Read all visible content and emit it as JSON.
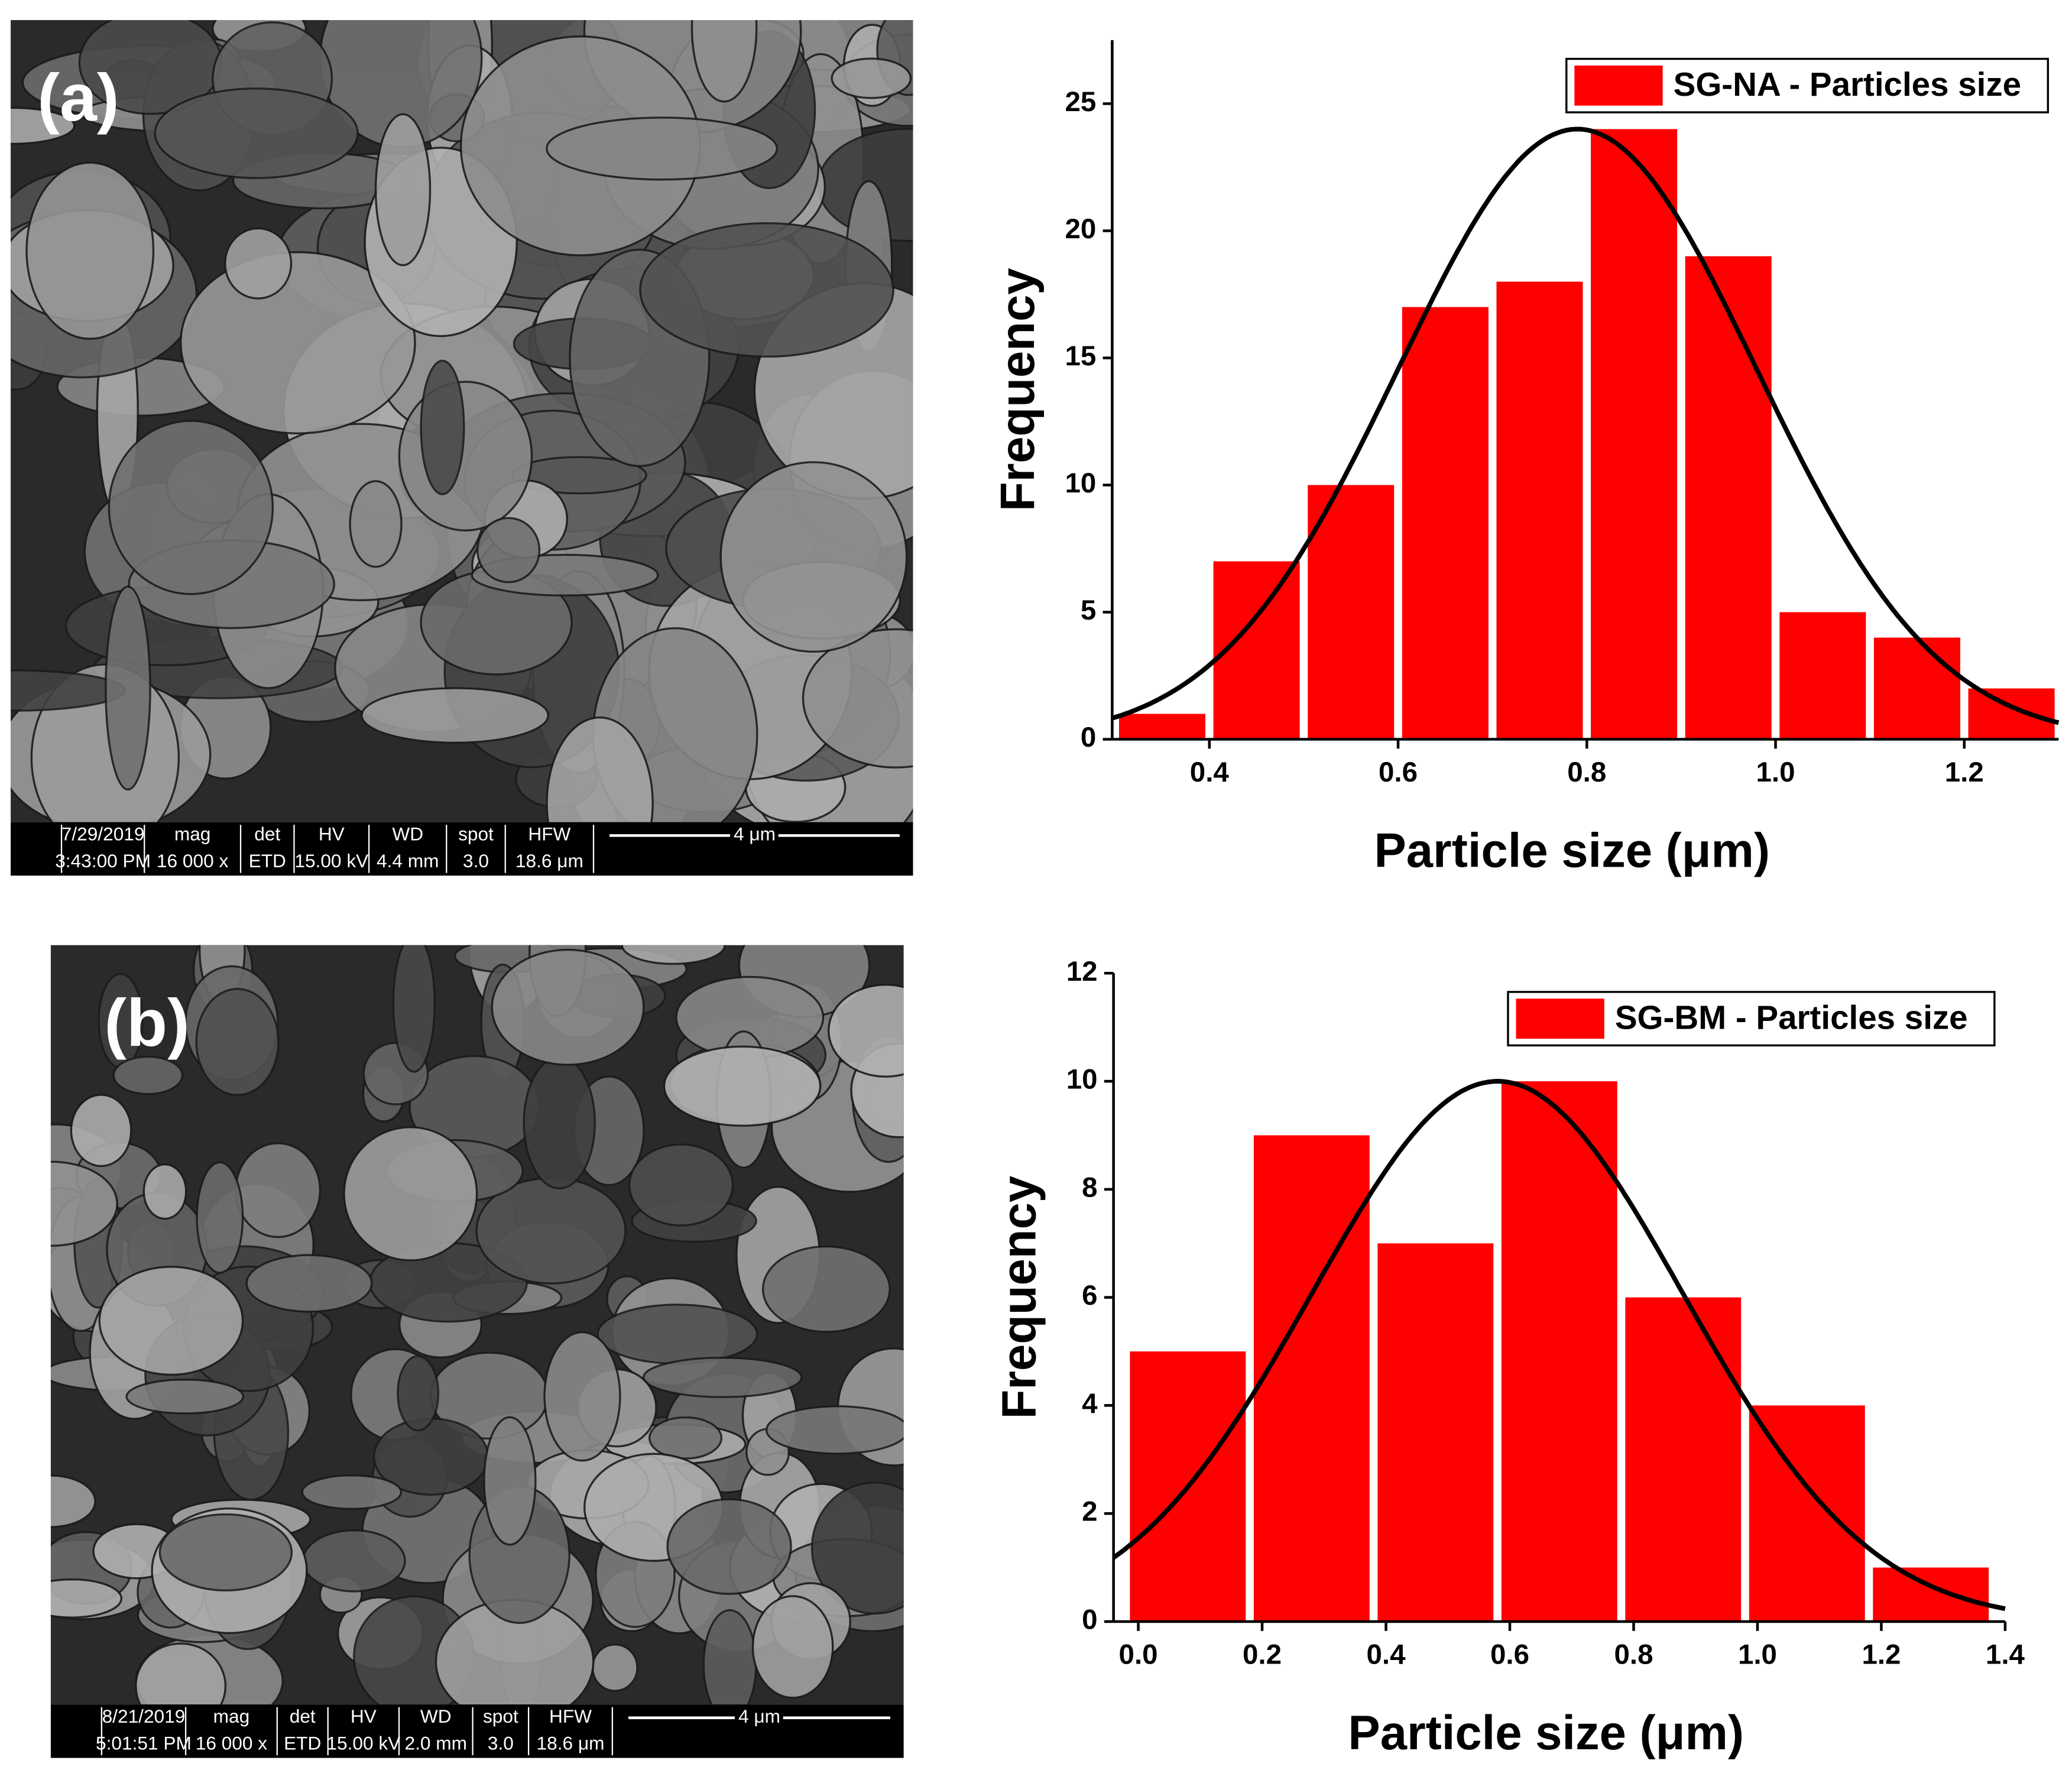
{
  "images": [
    {
      "label": "(a)",
      "info": [
        [
          "7/29/2019",
          "3:43:00 PM"
        ],
        [
          "mag",
          "16 000 x"
        ],
        [
          "det",
          "ETD"
        ],
        [
          "HV",
          "15.00 kV"
        ],
        [
          "WD",
          "4.4 mm"
        ],
        [
          "spot",
          "3.0"
        ],
        [
          "HFW",
          "18.6 μm"
        ]
      ],
      "scale": "4 μm"
    },
    {
      "label": "(b)",
      "info": [
        [
          "8/21/2019",
          "5:01:51 PM"
        ],
        [
          "mag",
          "16 000 x"
        ],
        [
          "det",
          "ETD"
        ],
        [
          "HV",
          "15.00 kV"
        ],
        [
          "WD",
          "2.0 mm"
        ],
        [
          "spot",
          "3.0"
        ],
        [
          "HFW",
          "18.6 μm"
        ]
      ],
      "scale": "4 μm"
    }
  ],
  "chart_data": [
    {
      "type": "histogram",
      "xlabel": "Particle size (μm)",
      "ylabel": "Frequency",
      "series": [
        {
          "name": "SG-NA - Particles size",
          "color": "#ff0000",
          "bins": [
            0.3,
            0.4,
            0.5,
            0.6,
            0.7,
            0.8,
            0.9,
            1.0,
            1.1,
            1.2,
            1.3
          ],
          "values": [
            1,
            7,
            10,
            17,
            18,
            24,
            19,
            5,
            4,
            2
          ]
        }
      ],
      "fit": {
        "amplitude": 24,
        "mean": 0.79,
        "sigma": 0.19
      },
      "xlim": [
        0.297,
        1.3
      ],
      "ylim": [
        0,
        27.5
      ],
      "xticks": [
        0.4,
        0.6,
        0.8,
        {
          "value": 1,
          "label": "1.0"
        },
        1.2
      ],
      "yticks": [
        0,
        5,
        10,
        15,
        20,
        25
      ],
      "legend": "top-right"
    },
    {
      "type": "histogram",
      "xlabel": "Particle size (μm)",
      "ylabel": "Frequency",
      "series": [
        {
          "name": "SG-BM - Particles size",
          "color": "#ff0000",
          "bins": [
            -0.02,
            0.18,
            0.38,
            0.58,
            0.78,
            0.98,
            1.18,
            1.38
          ],
          "values": [
            5,
            9,
            7,
            10,
            6,
            4,
            1
          ]
        }
      ],
      "fit": {
        "amplitude": 10,
        "mean": 0.58,
        "sigma": 0.3
      },
      "xlim": [
        -0.04,
        1.4
      ],
      "ylim": [
        0,
        12
      ],
      "xticks": [
        {
          "value": 0,
          "label": "0.0"
        },
        0.2,
        0.4,
        0.6,
        0.8,
        {
          "value": 1,
          "label": "1.0"
        },
        1.2,
        1.4
      ],
      "yticks": [
        0,
        2,
        4,
        6,
        8,
        10,
        12
      ],
      "legend": "top-right"
    }
  ]
}
